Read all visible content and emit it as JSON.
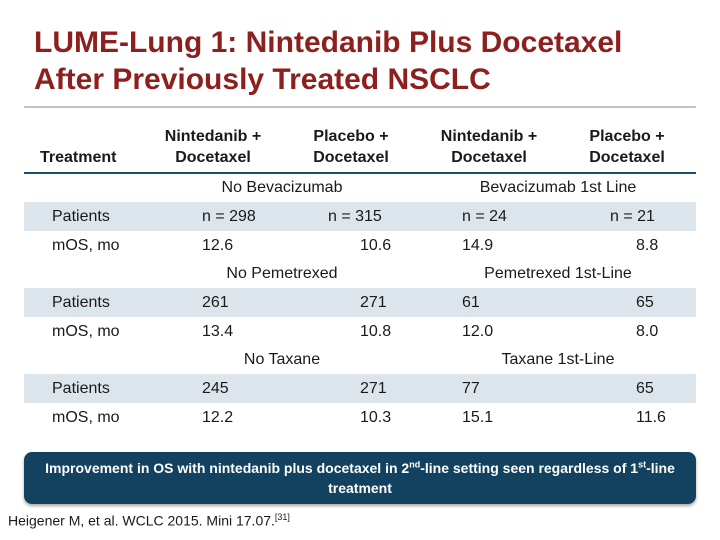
{
  "title": {
    "line1": "LUME-Lung 1: Nintedanib Plus Docetaxel",
    "line2": "After Previously Treated NSCLC"
  },
  "table": {
    "header": {
      "treatment": "Treatment",
      "col1": [
        "Nintedanib +",
        "Docetaxel"
      ],
      "col2": [
        "Placebo +",
        "Docetaxel"
      ],
      "col3": [
        "Nintedanib +",
        "Docetaxel"
      ],
      "col4": [
        "Placebo +",
        "Docetaxel"
      ]
    },
    "groups": [
      {
        "left": "No Bevacizumab",
        "right": "Bevacizumab 1st Line",
        "patients": {
          "label": "Patients",
          "values": [
            "n = 298",
            "n = 315",
            "n = 24",
            "n = 21"
          ]
        },
        "mos": {
          "label": "mOS, mo",
          "values": [
            "12.6",
            "10.6",
            "14.9",
            "8.8"
          ]
        }
      },
      {
        "left": "No Pemetrexed",
        "right": "Pemetrexed 1st-Line",
        "patients": {
          "label": "Patients",
          "values": [
            "261",
            "271",
            "61",
            "65"
          ]
        },
        "mos": {
          "label": "mOS, mo",
          "values": [
            "13.4",
            "10.8",
            "12.0",
            "8.0"
          ]
        }
      },
      {
        "left": "No Taxane",
        "right": "Taxane 1st-Line",
        "patients": {
          "label": "Patients",
          "values": [
            "245",
            "271",
            "77",
            "65"
          ]
        },
        "mos": {
          "label": "mOS, mo",
          "values": [
            "12.2",
            "10.3",
            "15.1",
            "11.6"
          ]
        }
      }
    ]
  },
  "callout": {
    "part1": "Improvement in OS with nintedanib plus docetaxel in 2",
    "sup1": "nd",
    "part2": "-line setting seen regardless of 1",
    "sup2": "st",
    "part3": "-line treatment"
  },
  "citation": {
    "text": "Heigener M, et al. WCLC 2015. Mini 17.07.",
    "ref": "[31]"
  },
  "colors": {
    "title": "#8e1f1f",
    "rule": "#1f4e6b",
    "row_shade": "#dde5ec",
    "callout_bg": "#12425f"
  }
}
